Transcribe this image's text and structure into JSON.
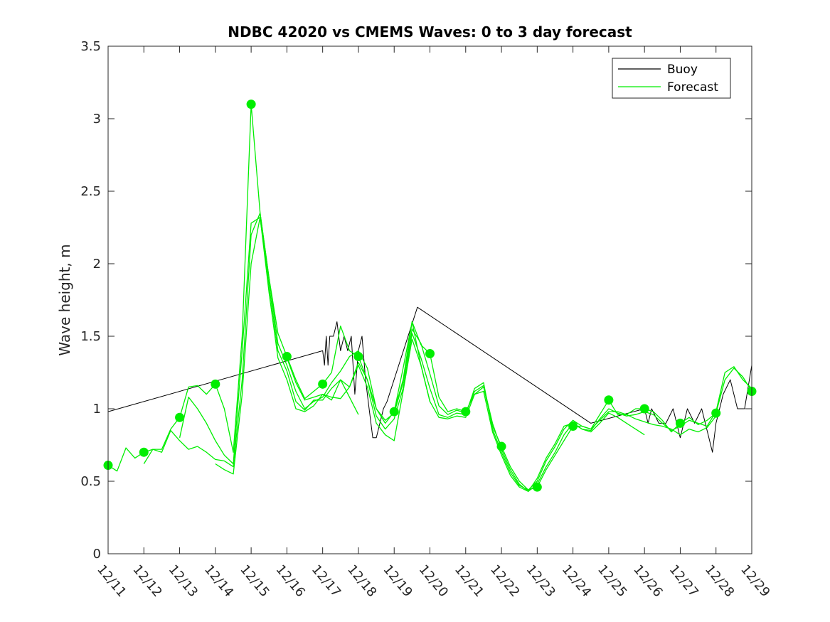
{
  "chart_data": {
    "type": "line",
    "title": "NDBC 42020 vs CMEMS Waves: 0 to 3 day forecast",
    "xlabel": "",
    "ylabel": "Wave height, m",
    "xlim": [
      11,
      29
    ],
    "ylim": [
      0,
      3.5
    ],
    "x_tick_values": [
      11,
      12,
      13,
      14,
      15,
      16,
      17,
      18,
      19,
      20,
      21,
      22,
      23,
      24,
      25,
      26,
      27,
      28,
      29
    ],
    "x_tick_labels": [
      "12/11",
      "12/12",
      "12/13",
      "12/14",
      "12/15",
      "12/16",
      "12/17",
      "12/18",
      "12/19",
      "12/20",
      "12/21",
      "12/22",
      "12/23",
      "12/24",
      "12/25",
      "12/26",
      "12/27",
      "12/28",
      "12/29"
    ],
    "y_tick_values": [
      0,
      0.5,
      1,
      1.5,
      2,
      2.5,
      3,
      3.5
    ],
    "y_tick_labels": [
      "0",
      "0.5",
      "1",
      "1.5",
      "2",
      "2.5",
      "3",
      "3.5"
    ],
    "grid": false,
    "legend_position": "top-right",
    "colors": {
      "buoy": "#000000",
      "forecast": "#00ee00",
      "axes": "#262626"
    },
    "series": [
      {
        "name": "Buoy",
        "style": "buoy",
        "x": [
          11.0,
          17.0,
          17.05,
          17.1,
          17.15,
          17.2,
          17.3,
          17.4,
          17.5,
          17.6,
          17.7,
          17.8,
          17.9,
          18.0,
          18.1,
          18.2,
          18.3,
          18.4,
          18.5,
          18.6,
          18.7,
          18.8,
          19.65,
          24.5,
          26.0,
          26.1,
          26.2,
          26.4,
          26.6,
          26.8,
          27.0,
          27.2,
          27.4,
          27.6,
          27.8,
          27.9,
          28.0,
          28.2,
          28.4,
          28.6,
          28.8,
          29.0
        ],
        "y": [
          0.98,
          1.4,
          1.3,
          1.5,
          1.3,
          1.5,
          1.5,
          1.6,
          1.4,
          1.5,
          1.4,
          1.5,
          1.1,
          1.4,
          1.5,
          1.2,
          1.0,
          0.8,
          0.8,
          0.9,
          1.0,
          1.05,
          1.7,
          0.9,
          1.0,
          0.9,
          1.0,
          0.9,
          0.9,
          1.0,
          0.8,
          1.0,
          0.9,
          1.0,
          0.8,
          0.7,
          0.9,
          1.1,
          1.2,
          1.0,
          1.0,
          1.3
        ]
      },
      {
        "name": "Forecast",
        "style": "forecast",
        "x": [
          11.0,
          11.25,
          11.5,
          11.75,
          12.0,
          12.25,
          12.5,
          12.75,
          13.0,
          13.25,
          13.5,
          13.75,
          14.0,
          14.25,
          14.5,
          14.75,
          15.0,
          15.25,
          15.5,
          15.75,
          16.0,
          16.25,
          16.5,
          16.75,
          17.0,
          17.25,
          17.5,
          17.75,
          18.0,
          18.25,
          18.5,
          18.75,
          19.0,
          19.25,
          19.5,
          19.75,
          20.0,
          20.25,
          20.5,
          20.75,
          21.0,
          21.25,
          21.5,
          21.75,
          22.0,
          22.25,
          22.5,
          22.75,
          23.0,
          23.25,
          23.5,
          23.75,
          24.0,
          24.25,
          24.5,
          24.75,
          25.0,
          25.25,
          25.5,
          25.75,
          26.0,
          26.25,
          26.5,
          26.75,
          27.0,
          27.25,
          27.5,
          27.75,
          28.0,
          28.25,
          28.5,
          28.75,
          29.0
        ],
        "y": [
          0.61,
          0.57,
          0.73,
          0.66,
          0.7,
          0.72,
          0.72,
          0.86,
          0.94,
          1.15,
          1.16,
          1.1,
          1.17,
          1.0,
          0.7,
          1.5,
          3.1,
          2.35,
          1.9,
          1.52,
          1.36,
          1.2,
          1.07,
          1.12,
          1.17,
          1.25,
          1.57,
          1.4,
          1.36,
          1.2,
          1.0,
          0.9,
          0.98,
          1.2,
          1.6,
          1.44,
          1.38,
          1.08,
          0.98,
          1.0,
          0.98,
          1.1,
          1.15,
          0.88,
          0.74,
          0.6,
          0.5,
          0.44,
          0.46,
          0.58,
          0.68,
          0.78,
          0.88,
          0.88,
          0.86,
          0.96,
          1.06,
          0.96,
          0.96,
          1.0,
          1.0,
          0.98,
          0.92,
          0.84,
          0.9,
          0.94,
          0.89,
          0.92,
          0.97,
          1.2,
          1.28,
          1.22,
          1.12
        ]
      },
      {
        "name": "",
        "style": "forecast",
        "x": [
          12.0,
          12.25,
          12.5,
          12.75,
          13.0,
          13.25,
          13.5,
          13.75,
          14.0,
          14.25,
          14.5,
          14.75,
          15.0,
          15.25,
          15.5,
          15.75,
          16.0,
          16.25,
          16.5,
          16.75,
          17.0,
          17.25,
          17.5,
          17.75,
          18.0,
          18.25,
          18.5,
          18.75,
          19.0,
          19.25,
          19.5,
          19.75,
          20.0,
          20.25,
          20.5,
          20.75,
          21.0,
          21.25,
          21.5,
          21.75,
          22.0,
          22.25,
          22.5,
          22.75,
          23.0,
          23.25,
          23.5,
          23.75,
          24.0,
          24.25,
          24.5,
          24.75,
          25.0,
          25.25,
          25.5,
          25.75,
          26.0,
          26.25,
          26.5,
          26.75,
          27.0,
          27.25,
          27.5,
          27.75,
          28.0,
          28.25,
          28.5,
          28.75,
          29.0
        ],
        "y": [
          0.62,
          0.72,
          0.7,
          0.85,
          0.78,
          0.72,
          0.74,
          0.7,
          0.65,
          0.64,
          0.6,
          1.2,
          2.2,
          2.35,
          1.9,
          1.45,
          1.3,
          1.12,
          1.0,
          1.05,
          1.08,
          1.18,
          1.26,
          1.36,
          1.4,
          1.28,
          1.0,
          0.92,
          0.97,
          1.18,
          1.55,
          1.45,
          1.24,
          1.02,
          0.96,
          0.99,
          0.97,
          1.12,
          1.16,
          0.9,
          0.72,
          0.58,
          0.48,
          0.43,
          0.48,
          0.6,
          0.7,
          0.82,
          0.9,
          0.86,
          0.85,
          0.93,
          1.0,
          0.97,
          0.95,
          0.96,
          0.98,
          0.96,
          0.9,
          0.85,
          0.88,
          0.92,
          0.9,
          0.88,
          0.98,
          1.25,
          1.29,
          1.2,
          1.14
        ]
      },
      {
        "name": "",
        "style": "forecast",
        "x": [
          13.0,
          13.25,
          13.5,
          13.75,
          14.0,
          14.25,
          14.5,
          14.75,
          15.0,
          15.25,
          15.5,
          15.75,
          16.0,
          16.25,
          16.5,
          16.75,
          17.0,
          17.25,
          17.5,
          17.75,
          18.0,
          18.25,
          18.5,
          18.75,
          19.0,
          19.25,
          19.5,
          19.75,
          20.0,
          20.25,
          20.5,
          20.75,
          21.0,
          21.25,
          21.5,
          21.75,
          22.0,
          22.25,
          22.5,
          22.75,
          23.0,
          23.25,
          23.5,
          23.75,
          24.0,
          24.25,
          24.5,
          24.75,
          25.0,
          25.25,
          25.5,
          25.75,
          26.0,
          26.25,
          26.5,
          26.75,
          27.0,
          27.25,
          27.5,
          27.75,
          28.0
        ],
        "y": [
          0.8,
          1.08,
          1.0,
          0.9,
          0.78,
          0.68,
          0.62,
          1.4,
          2.28,
          2.32,
          1.85,
          1.4,
          1.26,
          1.05,
          0.99,
          1.06,
          1.06,
          1.14,
          1.2,
          1.15,
          1.32,
          1.2,
          0.95,
          0.86,
          0.93,
          1.14,
          1.52,
          1.35,
          1.14,
          0.96,
          0.94,
          0.97,
          0.96,
          1.14,
          1.18,
          0.86,
          0.7,
          0.56,
          0.47,
          0.44,
          0.5,
          0.64,
          0.74,
          0.86,
          0.92,
          0.88,
          0.86,
          0.92,
          0.98,
          0.98,
          0.96,
          0.93,
          0.91,
          0.89,
          0.88,
          0.86,
          0.82,
          0.86,
          0.84,
          0.87,
          0.95
        ]
      },
      {
        "name": "",
        "style": "forecast",
        "x": [
          14.0,
          14.25,
          14.5,
          14.75,
          15.0,
          15.25,
          15.5,
          15.75,
          16.0,
          16.25,
          16.5,
          16.75,
          17.0,
          17.25,
          17.5,
          17.75,
          18.0,
          18.25,
          18.5,
          18.75,
          19.0,
          19.25,
          19.5,
          19.75,
          20.0,
          20.25,
          20.5,
          20.75,
          21.0,
          21.25,
          21.5,
          21.75,
          22.0,
          22.25,
          22.5,
          22.75,
          23.0,
          23.25,
          23.5,
          23.75,
          24.0,
          24.25,
          24.5,
          24.75,
          25.0,
          25.25,
          25.5,
          25.75,
          26.0
        ],
        "y": [
          0.62,
          0.58,
          0.55,
          1.1,
          2.0,
          2.32,
          1.8,
          1.35,
          1.2,
          1.0,
          0.98,
          1.02,
          1.1,
          1.08,
          1.07,
          1.15,
          1.3,
          1.15,
          0.9,
          0.82,
          0.78,
          1.12,
          1.48,
          1.3,
          1.05,
          0.94,
          0.93,
          0.95,
          0.94,
          1.1,
          1.12,
          0.84,
          0.68,
          0.54,
          0.46,
          0.43,
          0.52,
          0.66,
          0.76,
          0.88,
          0.9,
          0.86,
          0.84,
          0.9,
          0.97,
          0.94,
          0.9,
          0.86,
          0.82
        ]
      },
      {
        "name": "",
        "style": "forecast",
        "x": [
          16.0,
          16.25,
          16.5,
          16.75,
          17.0,
          17.25,
          17.5,
          17.75,
          18.0
        ],
        "y": [
          1.35,
          1.18,
          1.06,
          1.08,
          1.1,
          1.06,
          1.2,
          1.08,
          0.96
        ]
      },
      {
        "name": "",
        "style": "forecast",
        "x": [
          19.0,
          19.25,
          19.5,
          19.75,
          20.0
        ],
        "y": [
          0.98,
          1.28,
          1.6,
          1.3,
          1.05
        ]
      }
    ],
    "markers": {
      "x": [
        11,
        12,
        13,
        14,
        15,
        16,
        17,
        18,
        19,
        20,
        21,
        22,
        23,
        24,
        25,
        26,
        27,
        28,
        29
      ],
      "y": [
        0.61,
        0.7,
        0.94,
        1.17,
        3.1,
        1.36,
        1.17,
        1.36,
        0.98,
        1.38,
        0.98,
        0.74,
        0.46,
        0.88,
        1.06,
        1.0,
        0.9,
        0.97,
        1.12
      ]
    },
    "legend": [
      {
        "label": "Buoy",
        "style": "buoy"
      },
      {
        "label": "Forecast",
        "style": "forecast"
      }
    ]
  }
}
